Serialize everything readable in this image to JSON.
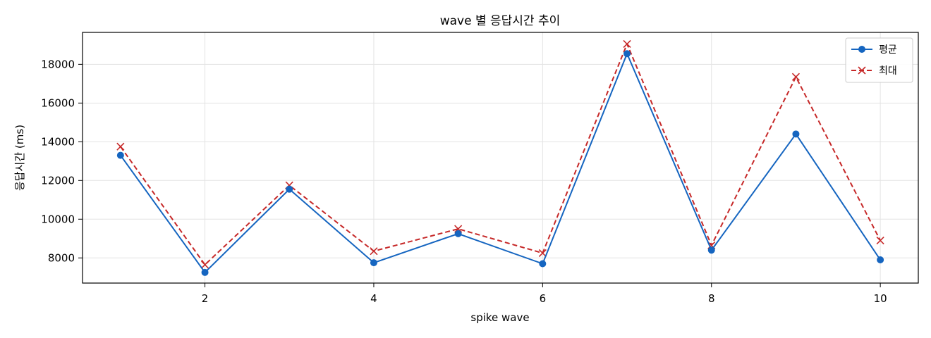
{
  "chart_data": {
    "type": "line",
    "title": "wave 별 응답시간 추이",
    "xlabel": "spike wave",
    "ylabel": "응답시간 (ms)",
    "x": [
      1,
      2,
      3,
      4,
      5,
      6,
      7,
      8,
      9,
      10
    ],
    "xlim": [
      0.55,
      10.45
    ],
    "ylim": [
      6700,
      19650
    ],
    "xticks": [
      2,
      4,
      6,
      8,
      10
    ],
    "yticks": [
      8000,
      10000,
      12000,
      14000,
      16000,
      18000
    ],
    "grid": true,
    "legend_position": "top-right",
    "series": [
      {
        "name": "평균",
        "values": [
          13300,
          7250,
          11550,
          7750,
          9250,
          7700,
          18550,
          8400,
          14400,
          7900
        ],
        "color": "#1565c0",
        "line_style": "solid",
        "marker": "circle"
      },
      {
        "name": "최대",
        "values": [
          13750,
          7650,
          11750,
          8350,
          9500,
          8250,
          19050,
          8650,
          17350,
          8900
        ],
        "color": "#c62828",
        "line_style": "dashed",
        "marker": "x"
      }
    ]
  }
}
